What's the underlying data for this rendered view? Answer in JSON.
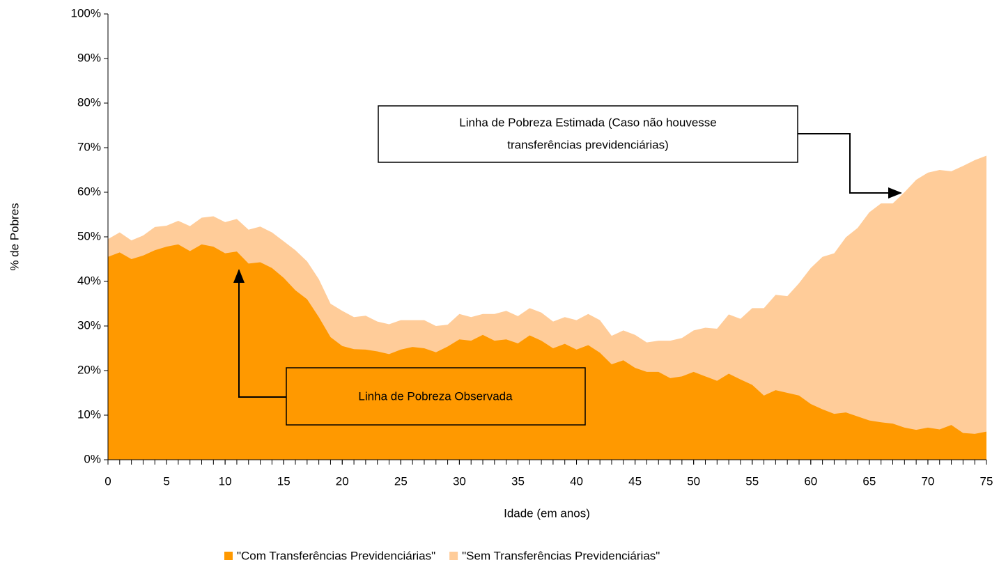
{
  "chart_data": {
    "type": "area",
    "x_label": "Idade (em anos)",
    "y_label": "% de Pobres",
    "x": [
      0,
      1,
      2,
      3,
      4,
      5,
      6,
      7,
      8,
      9,
      10,
      11,
      12,
      13,
      14,
      15,
      16,
      17,
      18,
      19,
      20,
      21,
      22,
      23,
      24,
      25,
      26,
      27,
      28,
      29,
      30,
      31,
      32,
      33,
      34,
      35,
      36,
      37,
      38,
      39,
      40,
      41,
      42,
      43,
      44,
      45,
      46,
      47,
      48,
      49,
      50,
      51,
      52,
      53,
      54,
      55,
      56,
      57,
      58,
      59,
      60,
      61,
      62,
      63,
      64,
      65,
      66,
      67,
      68,
      69,
      70,
      71,
      72,
      73,
      74,
      75
    ],
    "series": [
      {
        "name": "\"Com Transferências Previdenciárias\"",
        "color": "#ff9900",
        "values": [
          45.5,
          46.5,
          45,
          45.8,
          47,
          47.8,
          48.3,
          46.8,
          48.3,
          47.8,
          46.3,
          46.7,
          44,
          44.3,
          43,
          40.8,
          38,
          36,
          32,
          27.5,
          25.5,
          24.8,
          24.7,
          24.3,
          23.7,
          24.7,
          25.3,
          25,
          24.1,
          25.4,
          27,
          26.7,
          28,
          26.7,
          27,
          26.1,
          27.9,
          26.7,
          25,
          26,
          24.7,
          25.7,
          24,
          21.4,
          22.3,
          20.6,
          19.7,
          19.7,
          18.3,
          18.7,
          19.7,
          18.7,
          17.7,
          19.3,
          18,
          16.8,
          14.4,
          15.6,
          15,
          14.4,
          12.5,
          11.3,
          10.3,
          10.6,
          9.7,
          8.8,
          8.4,
          8.1,
          7.2,
          6.7,
          7.2,
          6.8,
          7.8,
          6,
          5.8,
          6.3
        ]
      },
      {
        "name": "\"Sem Transferências Previdenciárias\"",
        "color": "#ffcc99",
        "values": [
          49.5,
          51,
          49.2,
          50.3,
          52.2,
          52.5,
          53.6,
          52.4,
          54.3,
          54.6,
          53.3,
          54,
          51.6,
          52.3,
          51,
          49,
          47,
          44.5,
          40.5,
          35,
          33.4,
          32,
          32.3,
          31,
          30.4,
          31.3,
          31.3,
          31.3,
          30,
          30.3,
          32.7,
          32,
          32.7,
          32.7,
          33.4,
          32.2,
          34,
          33,
          31,
          32,
          31.3,
          32.7,
          31.3,
          27.8,
          29,
          28,
          26.3,
          26.7,
          26.7,
          27.3,
          29,
          29.6,
          29.4,
          32.6,
          31.6,
          34,
          34,
          37,
          36.7,
          39.6,
          43,
          45.5,
          46.3,
          49.9,
          52,
          55.5,
          57.5,
          57.5,
          60,
          62.8,
          64.4,
          65,
          64.7,
          65.9,
          67.2,
          68.2
        ]
      }
    ],
    "xlim": [
      0,
      75
    ],
    "xticks": [
      0,
      5,
      10,
      15,
      20,
      25,
      30,
      35,
      40,
      45,
      50,
      55,
      60,
      65,
      70,
      75
    ],
    "ylim": [
      0,
      100
    ],
    "yticks": [
      {
        "value": 0,
        "label": "0%"
      },
      {
        "value": 10,
        "label": "10%"
      },
      {
        "value": 20,
        "label": "20%"
      },
      {
        "value": 30,
        "label": "30%"
      },
      {
        "value": 40,
        "label": "40%"
      },
      {
        "value": 50,
        "label": "50%"
      },
      {
        "value": 60,
        "label": "60%"
      },
      {
        "value": 70,
        "label": "70%"
      },
      {
        "value": 80,
        "label": "80%"
      },
      {
        "value": 90,
        "label": "90%"
      },
      {
        "value": 100,
        "label": "100%"
      }
    ],
    "grid": false,
    "legend": "bottom",
    "annotations": [
      {
        "lines": [
          "Linha de Pobreza Estimada (Caso não houvesse",
          "transferências previdenciárias)"
        ]
      },
      {
        "lines": [
          "Linha de Pobreza Observada"
        ]
      }
    ]
  }
}
